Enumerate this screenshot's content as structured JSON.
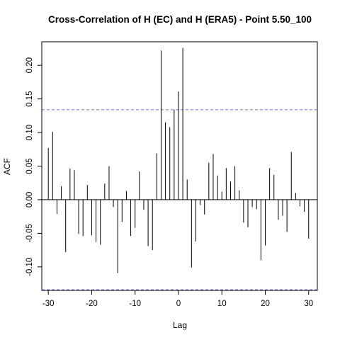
{
  "chart_data": {
    "type": "bar",
    "title": "Cross-Correlation of H (EC) and H (ERA5) - Point 5.50_100",
    "xlabel": "Lag",
    "ylabel": "ACF",
    "xlim": [
      -31.5,
      32
    ],
    "ylim": [
      -0.135,
      0.235
    ],
    "x_ticks": [
      -30,
      -20,
      -10,
      0,
      10,
      20,
      30
    ],
    "x_tick_labels": [
      "-30",
      "-20",
      "-10",
      "0",
      "10",
      "20",
      "30"
    ],
    "y_ticks": [
      -0.1,
      -0.05,
      0.0,
      0.05,
      0.1,
      0.15,
      0.2
    ],
    "y_tick_labels": [
      "-0.10",
      "-0.05",
      "0.00",
      "0.05",
      "0.10",
      "0.15",
      "0.20"
    ],
    "confidence_band": [
      0.134,
      -0.134
    ],
    "confidence_color": "#6b6bd8",
    "grid": false,
    "lags": [
      -30,
      -29,
      -28,
      -27,
      -26,
      -25,
      -24,
      -23,
      -22,
      -21,
      -20,
      -19,
      -18,
      -17,
      -16,
      -15,
      -14,
      -13,
      -12,
      -11,
      -10,
      -9,
      -8,
      -7,
      -6,
      -5,
      -4,
      -3,
      -2,
      -1,
      0,
      1,
      2,
      3,
      4,
      5,
      6,
      7,
      8,
      9,
      10,
      11,
      12,
      13,
      14,
      15,
      16,
      17,
      18,
      19,
      20,
      21,
      22,
      23,
      24,
      25,
      26,
      27,
      28,
      29,
      30
    ],
    "values": [
      0.077,
      0.101,
      -0.021,
      0.02,
      -0.078,
      0.046,
      0.044,
      -0.051,
      -0.054,
      0.022,
      -0.053,
      -0.063,
      -0.067,
      0.024,
      0.05,
      -0.011,
      -0.109,
      -0.033,
      0.013,
      -0.054,
      -0.042,
      0.042,
      -0.015,
      -0.069,
      -0.075,
      0.069,
      0.222,
      0.115,
      0.108,
      0.134,
      0.161,
      0.226,
      0.03,
      -0.101,
      -0.062,
      -0.008,
      -0.022,
      0.055,
      0.068,
      0.036,
      0.012,
      0.047,
      0.027,
      0.05,
      0.014,
      -0.034,
      -0.041,
      -0.011,
      -0.014,
      -0.09,
      -0.068,
      0.047,
      0.037,
      -0.03,
      -0.024,
      -0.048,
      0.071,
      0.01,
      -0.01,
      -0.018,
      -0.058
    ]
  }
}
